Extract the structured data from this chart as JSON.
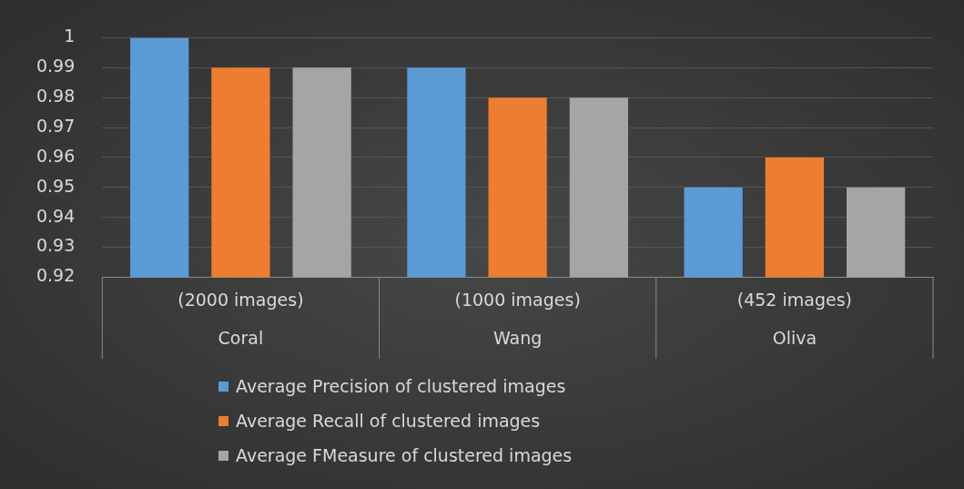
{
  "chart_data": {
    "type": "bar",
    "categories": [
      "(2000 images)\nCoral",
      "(1000 images)\nWang",
      "(452 images)\nOliva"
    ],
    "series": [
      {
        "name": "Average Precision of clustered images",
        "color": "#5b9bd5",
        "values": [
          1,
          0.99,
          0.95
        ]
      },
      {
        "name": "Average Recall of clustered images",
        "color": "#ed7d31",
        "values": [
          0.99,
          0.98,
          0.96
        ]
      },
      {
        "name": "Average FMeasure of clustered images",
        "color": "#a5a5a5",
        "values": [
          0.99,
          0.98,
          0.95
        ]
      }
    ],
    "ylim": [
      0.92,
      1
    ],
    "yticks": [
      0.92,
      0.93,
      0.94,
      0.95,
      0.96,
      0.97,
      0.98,
      0.99,
      1
    ],
    "grid": "y",
    "legend": "bottom"
  }
}
